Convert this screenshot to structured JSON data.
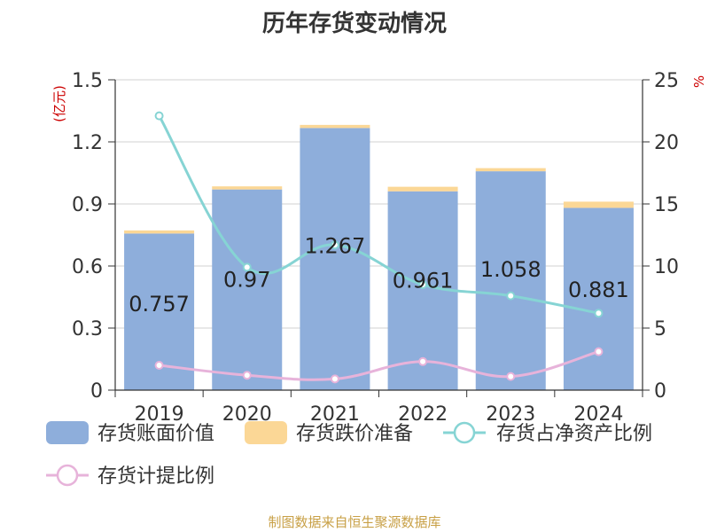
{
  "chart_data": {
    "type": "bar",
    "title": "历年存货变动情况",
    "categories": [
      "2019",
      "2020",
      "2021",
      "2022",
      "2023",
      "2024"
    ],
    "left_axis": {
      "label": "(亿元)",
      "ylim": [
        0,
        1.5
      ],
      "ticks": [
        "0",
        "0.3",
        "0.6",
        "0.9",
        "1.2",
        "1.5"
      ]
    },
    "right_axis": {
      "label": "%",
      "ylim": [
        0,
        25
      ],
      "ticks": [
        "0",
        "5",
        "10",
        "15",
        "20",
        "25"
      ]
    },
    "series": [
      {
        "name": "存货账面价值",
        "type": "bar",
        "axis": "left",
        "color": "#8eaedb",
        "values": [
          0.757,
          0.97,
          1.267,
          0.961,
          1.058,
          0.881
        ],
        "labels": [
          "0.757",
          "0.97",
          "1.267",
          "0.961",
          "1.058",
          "0.881"
        ]
      },
      {
        "name": "存货跌价准备",
        "type": "bar",
        "axis": "left",
        "stacked": true,
        "color": "#fbd796",
        "values": [
          0.015,
          0.015,
          0.015,
          0.022,
          0.015,
          0.03
        ]
      },
      {
        "name": "存货占净资产比例",
        "type": "line",
        "axis": "right",
        "color": "#86d4d4",
        "values": [
          22.1,
          9.9,
          11.7,
          8.5,
          7.6,
          6.2
        ]
      },
      {
        "name": "存货计提比例",
        "type": "line",
        "axis": "right",
        "color": "#e7b3da",
        "values": [
          2.0,
          1.2,
          0.9,
          2.3,
          1.1,
          3.1
        ]
      }
    ],
    "grid": true,
    "legend_position": "bottom"
  },
  "source_note": "制图数据来自恒生聚源数据库"
}
